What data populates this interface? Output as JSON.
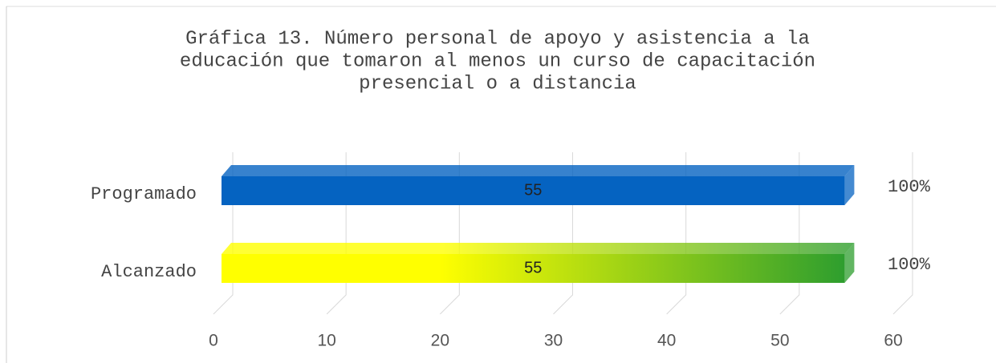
{
  "chart_data": {
    "type": "bar3d_h",
    "title": [
      "Gráfica  13.  Número personal de apoyo y asistencia a la",
      "educación que tomaron al menos un curso de capacitación",
      "presencial o a distancia"
    ],
    "categories": [
      "Programado",
      "Alcanzado"
    ],
    "values": [
      55,
      55
    ],
    "annotations": [
      "100%",
      "100%"
    ],
    "colors": [
      [
        "#0563c1",
        "#0563c1"
      ],
      [
        "#ffff00",
        "#2e9e2e"
      ]
    ],
    "xlim": [
      0,
      60
    ],
    "xticks": [
      0,
      10,
      20,
      30,
      40,
      50,
      60
    ],
    "grid": true
  }
}
